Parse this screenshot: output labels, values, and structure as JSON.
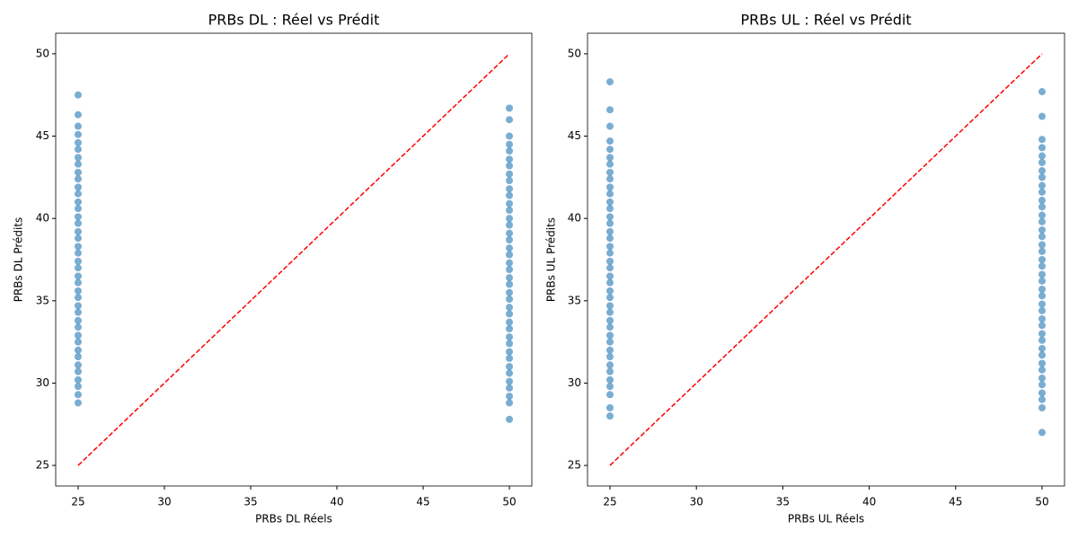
{
  "chart_data": [
    {
      "type": "scatter",
      "title": "PRBs DL : Réel vs Prédit",
      "xlabel": "PRBs DL Réels",
      "ylabel": "PRBs DL Prédits",
      "xlim": [
        23.7,
        51.3
      ],
      "ylim": [
        23.75,
        51.25
      ],
      "xticks": [
        25,
        30,
        35,
        40,
        45,
        50
      ],
      "yticks": [
        25,
        30,
        35,
        40,
        45,
        50
      ],
      "series": [
        {
          "color": "#1f77b4",
          "alpha": 0.6,
          "x": [
            25,
            25,
            25,
            25,
            25,
            25,
            25,
            25,
            25,
            25,
            25,
            25,
            25,
            25,
            25,
            25,
            25,
            25,
            25,
            25,
            25,
            25,
            25,
            25,
            25,
            25,
            25,
            25,
            25,
            25,
            25,
            25,
            25,
            25,
            25,
            25,
            25,
            25,
            25,
            25,
            50,
            50,
            50,
            50,
            50,
            50,
            50,
            50,
            50,
            50,
            50,
            50,
            50,
            50,
            50,
            50,
            50,
            50,
            50,
            50,
            50,
            50,
            50,
            50,
            50,
            50,
            50,
            50,
            50,
            50,
            50,
            50,
            50,
            50,
            50,
            50,
            50,
            50,
            50,
            50
          ],
          "values": [
            28.8,
            29.3,
            29.8,
            30.2,
            30.7,
            31.1,
            31.6,
            32.0,
            32.5,
            32.9,
            33.4,
            33.8,
            34.3,
            34.7,
            35.2,
            35.6,
            36.1,
            36.5,
            37.0,
            37.4,
            37.9,
            38.3,
            38.8,
            39.2,
            39.7,
            40.1,
            40.6,
            41.0,
            41.5,
            41.9,
            42.4,
            42.8,
            43.3,
            43.7,
            44.2,
            44.6,
            45.1,
            45.6,
            46.3,
            47.5,
            27.8,
            28.8,
            29.2,
            29.7,
            30.1,
            30.6,
            31.0,
            31.5,
            31.9,
            32.4,
            32.8,
            33.3,
            33.7,
            34.2,
            34.6,
            35.1,
            35.5,
            36.0,
            36.4,
            36.9,
            37.3,
            37.8,
            38.2,
            38.7,
            39.1,
            39.6,
            40.0,
            40.5,
            40.9,
            41.4,
            41.8,
            42.3,
            42.7,
            43.2,
            43.6,
            44.1,
            44.5,
            45.0,
            46.0,
            46.7
          ]
        }
      ],
      "lines": [
        {
          "x": [
            25,
            50
          ],
          "values": [
            25,
            50
          ],
          "color": "red",
          "dash": true
        }
      ]
    },
    {
      "type": "scatter",
      "title": "PRBs UL : Réel vs Prédit",
      "xlabel": "PRBs UL Réels",
      "ylabel": "PRBs UL Prédits",
      "xlim": [
        23.7,
        51.3
      ],
      "ylim": [
        23.75,
        51.25
      ],
      "xticks": [
        25,
        30,
        35,
        40,
        45,
        50
      ],
      "yticks": [
        25,
        30,
        35,
        40,
        45,
        50
      ],
      "series": [
        {
          "color": "#1f77b4",
          "alpha": 0.6,
          "x": [
            25,
            25,
            25,
            25,
            25,
            25,
            25,
            25,
            25,
            25,
            25,
            25,
            25,
            25,
            25,
            25,
            25,
            25,
            25,
            25,
            25,
            25,
            25,
            25,
            25,
            25,
            25,
            25,
            25,
            25,
            25,
            25,
            25,
            25,
            25,
            25,
            25,
            25,
            25,
            25,
            50,
            50,
            50,
            50,
            50,
            50,
            50,
            50,
            50,
            50,
            50,
            50,
            50,
            50,
            50,
            50,
            50,
            50,
            50,
            50,
            50,
            50,
            50,
            50,
            50,
            50,
            50,
            50,
            50,
            50,
            50,
            50,
            50,
            50,
            50,
            50,
            50,
            50,
            50,
            50
          ],
          "values": [
            28.0,
            28.5,
            29.3,
            29.8,
            30.2,
            30.7,
            31.1,
            31.6,
            32.0,
            32.5,
            32.9,
            33.4,
            33.8,
            34.3,
            34.7,
            35.2,
            35.6,
            36.1,
            36.5,
            37.0,
            37.4,
            37.9,
            38.3,
            38.8,
            39.2,
            39.7,
            40.1,
            40.6,
            41.0,
            41.5,
            41.9,
            42.4,
            42.8,
            43.3,
            43.7,
            44.2,
            44.7,
            45.6,
            46.6,
            48.3,
            27.0,
            28.5,
            29.0,
            29.4,
            29.9,
            30.3,
            30.8,
            31.2,
            31.7,
            32.1,
            32.6,
            33.0,
            33.5,
            33.9,
            34.4,
            34.8,
            35.3,
            35.7,
            36.2,
            36.6,
            37.1,
            37.5,
            38.0,
            38.4,
            38.9,
            39.3,
            39.8,
            40.2,
            40.7,
            41.1,
            41.6,
            42.0,
            42.5,
            42.9,
            43.4,
            43.8,
            44.3,
            44.8,
            46.2,
            47.7
          ]
        }
      ],
      "lines": [
        {
          "x": [
            25,
            50
          ],
          "values": [
            25,
            50
          ],
          "color": "red",
          "dash": true
        }
      ]
    }
  ]
}
